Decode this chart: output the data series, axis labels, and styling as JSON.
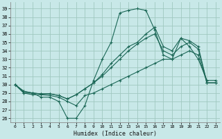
{
  "xlabel": "Humidex (Indice chaleur)",
  "bg_color": "#c8e8e8",
  "grid_color": "#a0c8c0",
  "line_color": "#1a6655",
  "x_ticks": [
    0,
    1,
    2,
    3,
    4,
    5,
    6,
    7,
    8,
    9,
    10,
    11,
    12,
    13,
    14,
    15,
    16,
    17,
    18,
    19,
    20,
    21,
    22,
    23
  ],
  "y_ticks": [
    26,
    27,
    28,
    29,
    30,
    31,
    32,
    33,
    34,
    35,
    36,
    37,
    38,
    39
  ],
  "ylim": [
    25.5,
    39.8
  ],
  "xlim": [
    -0.5,
    23.5
  ],
  "line1": [
    30.0,
    29.0,
    29.0,
    28.5,
    28.5,
    28.0,
    26.0,
    26.0,
    27.5,
    30.5,
    33.0,
    35.0,
    38.5,
    38.8,
    39.0,
    38.8,
    36.5,
    33.5,
    33.0,
    35.5,
    34.5,
    33.0,
    30.5,
    30.5
  ],
  "line2": [
    30.0,
    29.0,
    28.8,
    28.8,
    28.7,
    28.5,
    28.0,
    27.5,
    28.7,
    29.0,
    29.5,
    30.0,
    30.5,
    31.0,
    31.5,
    32.0,
    32.5,
    33.0,
    33.0,
    33.5,
    34.0,
    33.5,
    30.2,
    30.2
  ],
  "line3": [
    30.0,
    29.2,
    29.0,
    28.9,
    28.9,
    28.7,
    28.3,
    28.8,
    29.5,
    30.2,
    31.0,
    32.0,
    33.0,
    34.0,
    34.8,
    35.5,
    36.0,
    34.0,
    33.5,
    34.5,
    35.0,
    34.2,
    30.2,
    30.2
  ],
  "line4": [
    30.0,
    29.2,
    29.0,
    28.9,
    28.9,
    28.7,
    28.3,
    28.8,
    29.5,
    30.2,
    31.2,
    32.5,
    33.5,
    34.5,
    35.0,
    36.0,
    36.8,
    34.5,
    34.0,
    35.5,
    35.2,
    34.5,
    30.2,
    30.2
  ]
}
